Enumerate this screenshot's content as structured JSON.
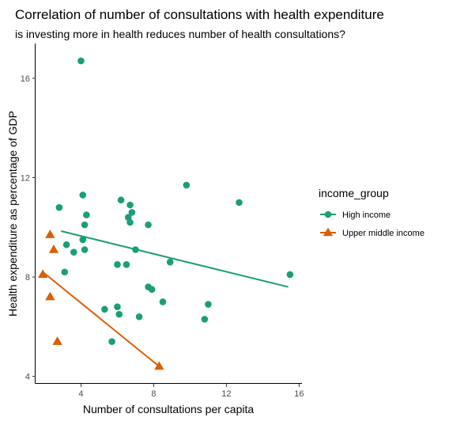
{
  "chart_data": {
    "type": "scatter",
    "title": "Correlation of number of consultations with health expenditure",
    "subtitle": "is investing more in health reduces number of health consultations?",
    "xlabel": "Number of consultations per capita",
    "ylabel": "Health expenditure as percentage of GDP",
    "xlim": [
      1.5,
      16.2
    ],
    "ylim": [
      3.7,
      17.4
    ],
    "xticks": [
      4,
      8,
      12,
      16
    ],
    "yticks": [
      4,
      8,
      12,
      16
    ],
    "grid": false,
    "legend": {
      "title": "income_group",
      "placement": "right"
    },
    "series": [
      {
        "name": "High income",
        "color": "#1b9e77",
        "marker": "circle",
        "points": [
          [
            4.0,
            16.7
          ],
          [
            4.1,
            11.3
          ],
          [
            6.2,
            11.1
          ],
          [
            6.7,
            10.9
          ],
          [
            6.8,
            10.6
          ],
          [
            6.6,
            10.4
          ],
          [
            6.7,
            10.2
          ],
          [
            7.7,
            10.1
          ],
          [
            9.8,
            11.7
          ],
          [
            12.7,
            11.0
          ],
          [
            2.8,
            10.8
          ],
          [
            4.3,
            10.5
          ],
          [
            4.2,
            10.1
          ],
          [
            4.1,
            9.5
          ],
          [
            3.2,
            9.3
          ],
          [
            4.2,
            9.1
          ],
          [
            3.6,
            9.0
          ],
          [
            7.0,
            9.1
          ],
          [
            8.9,
            8.6
          ],
          [
            6.0,
            8.5
          ],
          [
            6.5,
            8.5
          ],
          [
            3.1,
            8.2
          ],
          [
            15.5,
            8.1
          ],
          [
            7.7,
            7.6
          ],
          [
            7.9,
            7.5
          ],
          [
            8.5,
            7.0
          ],
          [
            11.0,
            6.9
          ],
          [
            5.3,
            6.7
          ],
          [
            6.0,
            6.8
          ],
          [
            6.1,
            6.5
          ],
          [
            7.2,
            6.4
          ],
          [
            10.8,
            6.3
          ],
          [
            5.7,
            5.4
          ]
        ],
        "trend": [
          [
            2.9,
            9.85
          ],
          [
            15.4,
            7.6
          ]
        ]
      },
      {
        "name": "Upper middle income",
        "color": "#d95f02",
        "marker": "triangle",
        "points": [
          [
            2.3,
            9.7
          ],
          [
            2.5,
            9.1
          ],
          [
            1.9,
            8.1
          ],
          [
            2.3,
            7.2
          ],
          [
            2.7,
            5.4
          ],
          [
            8.3,
            4.4
          ]
        ],
        "trend": [
          [
            1.9,
            8.2
          ],
          [
            8.3,
            4.4
          ]
        ]
      }
    ]
  }
}
